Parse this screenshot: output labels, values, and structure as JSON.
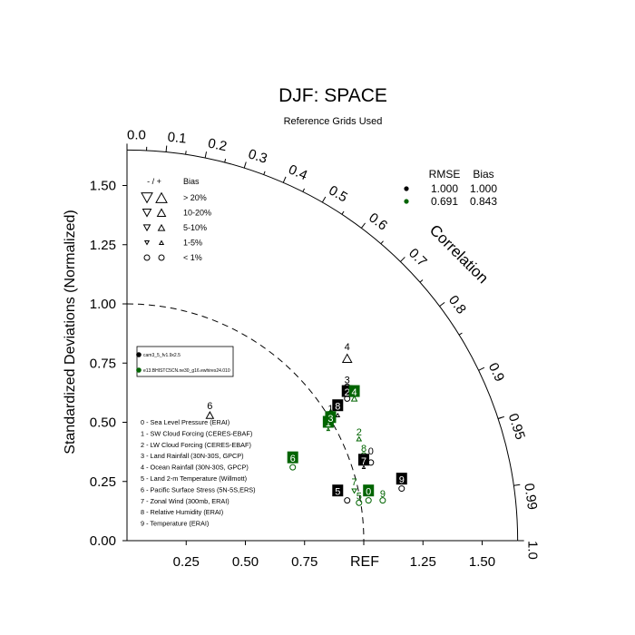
{
  "chart_data": {
    "type": "scatter",
    "diagram": "taylor",
    "title": "DJF: SPACE",
    "subtitle": "Reference Grids Used",
    "ylabel": "Standardized Deviations (Normalized)",
    "arc_label": "Correlation",
    "ref_label": "REF",
    "xlim": [
      0,
      1.65
    ],
    "ylim": [
      0,
      1.65
    ],
    "x_ticks": [
      "0.25",
      "0.50",
      "0.75",
      "1.25",
      "1.50"
    ],
    "x_tick_values": [
      0.25,
      0.5,
      0.75,
      1.25,
      1.5
    ],
    "y_ticks": [
      "0.00",
      "0.25",
      "0.50",
      "0.75",
      "1.00",
      "1.25",
      "1.50"
    ],
    "y_tick_values": [
      0,
      0.25,
      0.5,
      0.75,
      1.0,
      1.25,
      1.5
    ],
    "corr_labels": [
      "0.0",
      "0.1",
      "0.2",
      "0.3",
      "0.4",
      "0.5",
      "0.6",
      "0.7",
      "0.8",
      "0.9",
      "0.95",
      "0.99",
      "1.0"
    ],
    "corr_values": [
      0.0,
      0.1,
      0.2,
      0.3,
      0.4,
      0.5,
      0.6,
      0.7,
      0.8,
      0.9,
      0.95,
      0.99,
      1.0
    ],
    "ref_arc_radius": 1.0,
    "colors": {
      "case_a": "#000000",
      "case_b": "#006400"
    },
    "stats": {
      "headers": [
        "RMSE",
        "Bias"
      ],
      "rows": [
        {
          "color": "#000000",
          "rmse": "1.000",
          "bias": "1.000"
        },
        {
          "color": "#006400",
          "rmse": "0.691",
          "bias": "0.843"
        }
      ]
    },
    "bias_legend": {
      "header_sign": "- / +",
      "header_bias": "Bias",
      "rows": [
        "> 20%",
        "10-20%",
        "5-10%",
        "1-5%",
        "< 1%"
      ]
    },
    "cases": [
      {
        "color": "#000000",
        "label": "cam3_5_fv1.9x2.5"
      },
      {
        "color": "#006400",
        "label": "e13.BHISTC5CN.ne30_g16.ewhires24.010"
      }
    ],
    "variables": [
      "0 - Sea Level Pressure (ERAI)",
      "1 - SW Cloud Forcing (CERES-EBAF)",
      "2 - LW Cloud Forcing (CERES-EBAF)",
      "3 - Land Rainfall (30N-30S, GPCP)",
      "4 - Ocean Rainfall (30N-30S, GPCP)",
      "5 - Land 2-m Temperature (Willmott)",
      "6 - Pacific Surface Stress (5N-5S,ERS)",
      "7 - Zonal Wind (300mb, ERAI)",
      "8 - Relative Humidity (ERAI)",
      "9 - Temperature (ERAI)"
    ],
    "points": [
      {
        "case": 0,
        "id": "0",
        "x": 1.03,
        "y": 0.33,
        "marker": "circle",
        "size": 5
      },
      {
        "case": 0,
        "id": "1",
        "x": 0.86,
        "y": 0.53,
        "marker": "up",
        "size": 3
      },
      {
        "case": 0,
        "id": "2",
        "x": 0.93,
        "y": 0.6,
        "marker": "circle",
        "size": 5
      },
      {
        "case": 0,
        "id": "3",
        "x": 0.93,
        "y": 0.65,
        "marker": "circle",
        "size": 5
      },
      {
        "case": 0,
        "id": "4",
        "x": 0.93,
        "y": 0.77,
        "marker": "up",
        "size": 10
      },
      {
        "case": 0,
        "id": "5",
        "x": 0.93,
        "y": 0.17,
        "marker": "circle",
        "size": 5
      },
      {
        "case": 0,
        "id": "6",
        "x": 0.35,
        "y": 0.53,
        "marker": "up",
        "size": 8
      },
      {
        "case": 0,
        "id": "7",
        "x": 1.0,
        "y": 0.31,
        "marker": "up",
        "size": 3
      },
      {
        "case": 0,
        "id": "8",
        "x": 0.89,
        "y": 0.53,
        "marker": "up",
        "size": 4
      },
      {
        "case": 0,
        "id": "9",
        "x": 1.16,
        "y": 0.22,
        "marker": "circle",
        "size": 5
      },
      {
        "case": 1,
        "id": "0",
        "x": 1.02,
        "y": 0.17,
        "marker": "circle",
        "size": 5
      },
      {
        "case": 1,
        "id": "1",
        "x": 0.85,
        "y": 0.47,
        "marker": "up",
        "size": 3
      },
      {
        "case": 1,
        "id": "2",
        "x": 0.98,
        "y": 0.43,
        "marker": "up",
        "size": 5
      },
      {
        "case": 1,
        "id": "3",
        "x": 0.86,
        "y": 0.55,
        "marker": "up",
        "size": 3
      },
      {
        "case": 1,
        "id": "4",
        "x": 0.96,
        "y": 0.6,
        "marker": "up",
        "size": 6
      },
      {
        "case": 1,
        "id": "5",
        "x": 0.98,
        "y": 0.16,
        "marker": "circle",
        "size": 5
      },
      {
        "case": 1,
        "id": "6",
        "x": 0.7,
        "y": 0.31,
        "marker": "circle",
        "size": 5
      },
      {
        "case": 1,
        "id": "7",
        "x": 0.96,
        "y": 0.21,
        "marker": "down",
        "size": 5
      },
      {
        "case": 1,
        "id": "8",
        "x": 1.0,
        "y": 0.36,
        "marker": "circle",
        "size": 5
      },
      {
        "case": 1,
        "id": "9",
        "x": 1.08,
        "y": 0.17,
        "marker": "circle",
        "size": 5
      }
    ],
    "point_labels": [
      {
        "case": 0,
        "id": "0",
        "text": "0",
        "x": 1.03,
        "y": 0.38,
        "boxed": false
      },
      {
        "case": 0,
        "id": "1",
        "text": "1",
        "x": 0.86,
        "y": 0.56,
        "boxed": false
      },
      {
        "case": 0,
        "id": "2",
        "text": "2",
        "x": 0.93,
        "y": 0.63,
        "boxed": true
      },
      {
        "case": 0,
        "id": "3",
        "text": "3",
        "x": 0.93,
        "y": 0.68,
        "boxed": false
      },
      {
        "case": 0,
        "id": "4",
        "text": "4",
        "x": 0.93,
        "y": 0.82,
        "boxed": false
      },
      {
        "case": 0,
        "id": "5",
        "text": "5",
        "x": 0.89,
        "y": 0.21,
        "boxed": true
      },
      {
        "case": 0,
        "id": "6",
        "text": "6",
        "x": 0.35,
        "y": 0.57,
        "boxed": false
      },
      {
        "case": 0,
        "id": "7",
        "text": "7",
        "x": 1.0,
        "y": 0.34,
        "boxed": true
      },
      {
        "case": 0,
        "id": "8",
        "text": "8",
        "x": 0.89,
        "y": 0.57,
        "boxed": true
      },
      {
        "case": 0,
        "id": "9",
        "text": "9",
        "x": 1.16,
        "y": 0.26,
        "boxed": true
      },
      {
        "case": 1,
        "id": "0",
        "text": "0",
        "x": 1.02,
        "y": 0.21,
        "boxed": true
      },
      {
        "case": 1,
        "id": "1",
        "text": "1",
        "x": 0.85,
        "y": 0.5,
        "boxed": true
      },
      {
        "case": 1,
        "id": "2",
        "text": "2",
        "x": 0.98,
        "y": 0.46,
        "boxed": false
      },
      {
        "case": 1,
        "id": "3",
        "text": "3",
        "x": 0.86,
        "y": 0.52,
        "boxed": true
      },
      {
        "case": 1,
        "id": "4",
        "text": "4",
        "x": 0.96,
        "y": 0.63,
        "boxed": true
      },
      {
        "case": 1,
        "id": "5",
        "text": "5",
        "x": 0.98,
        "y": 0.19,
        "boxed": false
      },
      {
        "case": 1,
        "id": "6",
        "text": "6",
        "x": 0.7,
        "y": 0.35,
        "boxed": true
      },
      {
        "case": 1,
        "id": "7",
        "text": "7",
        "x": 0.96,
        "y": 0.25,
        "boxed": false
      },
      {
        "case": 1,
        "id": "8",
        "text": "8",
        "x": 1.0,
        "y": 0.39,
        "boxed": false
      },
      {
        "case": 1,
        "id": "9",
        "text": "9",
        "x": 1.08,
        "y": 0.2,
        "boxed": false
      }
    ]
  }
}
